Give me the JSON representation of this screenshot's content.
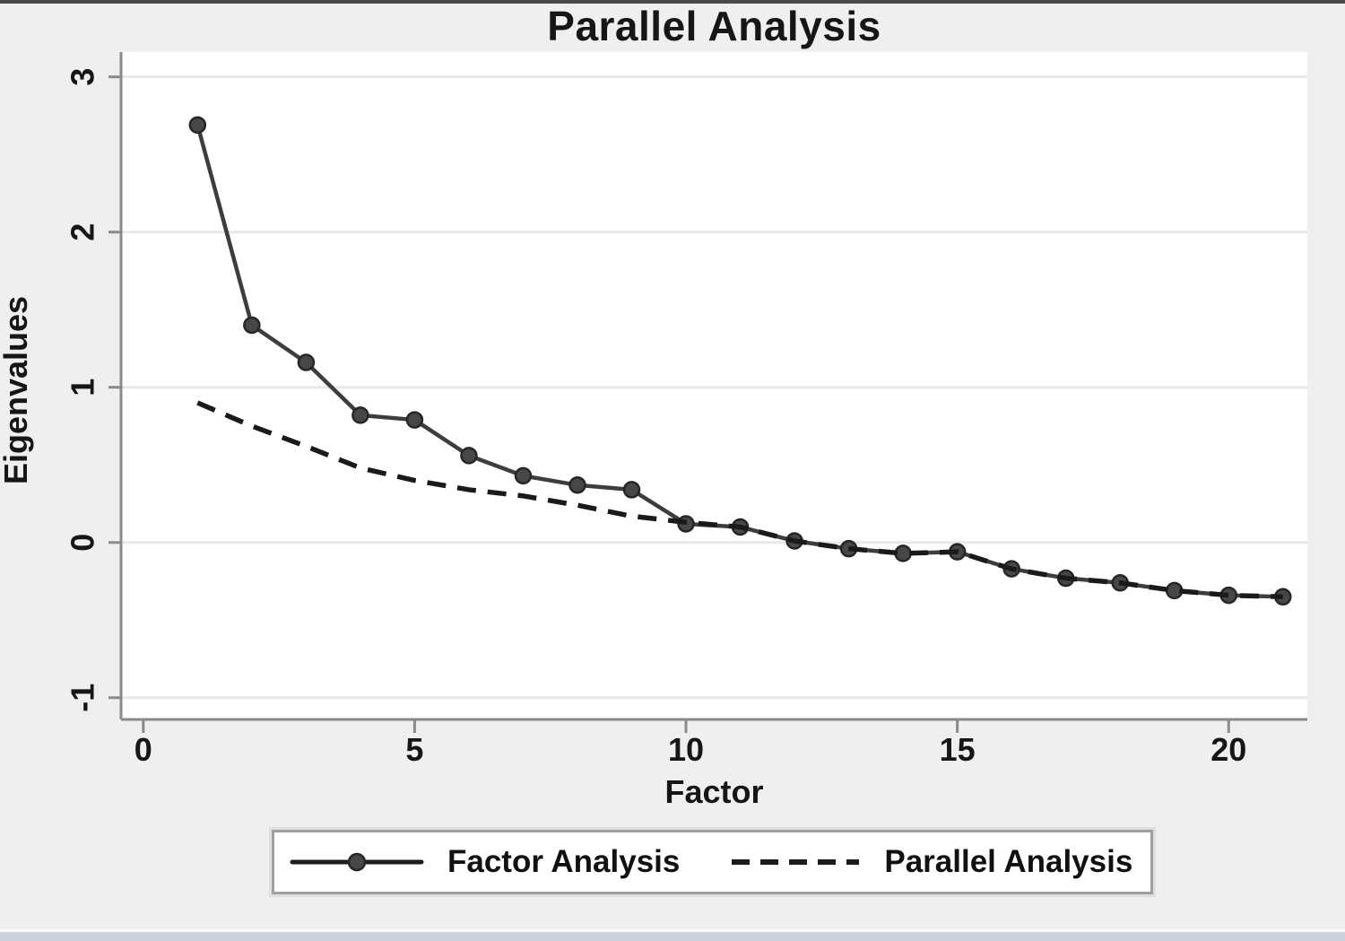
{
  "chart_data": {
    "type": "line",
    "title": "Parallel Analysis",
    "xlabel": "Factor",
    "ylabel": "Eigenvalues",
    "x": [
      1,
      2,
      3,
      4,
      5,
      6,
      7,
      8,
      9,
      10,
      11,
      12,
      13,
      14,
      15,
      16,
      17,
      18,
      19,
      20,
      21
    ],
    "series": [
      {
        "name": "Factor Analysis",
        "style": "solid-with-markers",
        "values": [
          2.69,
          1.4,
          1.16,
          0.82,
          0.79,
          0.56,
          0.43,
          0.37,
          0.34,
          0.12,
          0.1,
          0.01,
          -0.04,
          -0.07,
          -0.06,
          -0.17,
          -0.23,
          -0.26,
          -0.31,
          -0.34,
          -0.35
        ]
      },
      {
        "name": "Parallel Analysis",
        "style": "dashed",
        "values": [
          0.9,
          0.75,
          0.62,
          0.48,
          0.4,
          0.34,
          0.3,
          0.24,
          0.17,
          0.13,
          0.1,
          0.01,
          -0.04,
          -0.07,
          -0.06,
          -0.17,
          -0.23,
          -0.26,
          -0.31,
          -0.34,
          -0.35
        ]
      }
    ],
    "xticks": [
      0,
      5,
      10,
      15,
      20
    ],
    "yticks": [
      3,
      2,
      1,
      0,
      -1
    ],
    "xlim": [
      -0.41,
      21.45
    ],
    "ylim": [
      -1.14,
      3.16
    ],
    "grid": "horizontal",
    "legend_position": "bottom"
  },
  "legend": {
    "entries": [
      {
        "label": "Factor Analysis",
        "sample": "solid-line-with-circle-marker"
      },
      {
        "label": "Parallel Analysis",
        "sample": "dashed-line"
      }
    ]
  },
  "theme": {
    "page_background": "#efefef",
    "plot_background": "#ffffff",
    "grid_color": "#e8e8e8",
    "axis_color": "#8a8a8a",
    "text_color": "#161616",
    "solid_line_color": "#3d3d3d",
    "marker_fill": "#474747",
    "marker_edge": "#262626",
    "dashed_line_color": "#1a1a1a",
    "top_border_color": "#4a4a4a",
    "bottom_strip_color": "#ccd2d9",
    "legend_border_color": "#a0a0a0"
  }
}
